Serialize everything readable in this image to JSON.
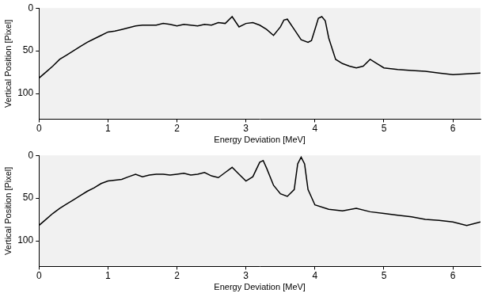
{
  "chart_data": [
    {
      "type": "line",
      "xlabel": "Energy Deviation [MeV]",
      "ylabel": "Vertical Position [Pixel]",
      "x": [
        0,
        0.1,
        0.2,
        0.3,
        0.4,
        0.5,
        0.6,
        0.7,
        0.8,
        0.9,
        1.0,
        1.1,
        1.2,
        1.3,
        1.4,
        1.5,
        1.6,
        1.7,
        1.8,
        1.9,
        2.0,
        2.1,
        2.2,
        2.3,
        2.4,
        2.5,
        2.6,
        2.7,
        2.8,
        2.9,
        3.0,
        3.1,
        3.2,
        3.3,
        3.4,
        3.5,
        3.55,
        3.6,
        3.7,
        3.8,
        3.9,
        3.95,
        4.0,
        4.05,
        4.1,
        4.15,
        4.2,
        4.3,
        4.4,
        4.5,
        4.6,
        4.7,
        4.8,
        4.9,
        5.0,
        5.2,
        5.4,
        5.6,
        5.8,
        6.0,
        6.2,
        6.4
      ],
      "values": [
        82,
        75,
        68,
        60,
        55,
        50,
        45,
        40,
        36,
        32,
        28,
        27,
        25,
        23,
        21,
        20,
        20,
        20,
        18,
        19,
        21,
        19,
        20,
        21,
        19,
        20,
        17,
        18,
        10,
        22,
        18,
        17,
        20,
        25,
        32,
        22,
        14,
        13,
        25,
        37,
        40,
        38,
        25,
        12,
        10,
        15,
        35,
        60,
        65,
        68,
        70,
        68,
        60,
        65,
        70,
        72,
        73,
        74,
        76,
        78,
        77,
        76
      ],
      "color": "#000000",
      "xlim": [
        0,
        6.4
      ],
      "xticks": [
        0,
        1,
        2,
        3,
        4,
        5,
        6
      ],
      "ylim": [
        130,
        0
      ],
      "yticks": [
        0,
        50,
        100
      ],
      "grid": false
    },
    {
      "type": "line",
      "xlabel": "Energy Deviation [MeV]",
      "ylabel": "Vertical Position [Pixel]",
      "x": [
        0,
        0.1,
        0.2,
        0.3,
        0.4,
        0.5,
        0.6,
        0.7,
        0.8,
        0.9,
        1.0,
        1.2,
        1.3,
        1.4,
        1.5,
        1.6,
        1.7,
        1.8,
        1.9,
        2.0,
        2.1,
        2.2,
        2.3,
        2.4,
        2.5,
        2.6,
        2.7,
        2.8,
        2.9,
        3.0,
        3.1,
        3.2,
        3.25,
        3.3,
        3.4,
        3.5,
        3.6,
        3.7,
        3.75,
        3.8,
        3.85,
        3.9,
        4.0,
        4.2,
        4.4,
        4.6,
        4.8,
        5.0,
        5.2,
        5.4,
        5.6,
        5.8,
        6.0,
        6.2,
        6.3,
        6.4
      ],
      "values": [
        82,
        75,
        68,
        62,
        57,
        52,
        47,
        42,
        38,
        33,
        30,
        28,
        25,
        22,
        25,
        23,
        22,
        22,
        23,
        22,
        21,
        23,
        22,
        20,
        24,
        26,
        20,
        14,
        22,
        30,
        25,
        8,
        6,
        15,
        35,
        45,
        48,
        40,
        10,
        2,
        10,
        40,
        58,
        63,
        65,
        62,
        66,
        68,
        70,
        72,
        75,
        76,
        78,
        82,
        80,
        78
      ],
      "color": "#000000",
      "xlim": [
        0,
        6.4
      ],
      "xticks": [
        0,
        1,
        2,
        3,
        4,
        5,
        6
      ],
      "ylim": [
        130,
        0
      ],
      "yticks": [
        0,
        50,
        100
      ],
      "grid": false
    }
  ]
}
